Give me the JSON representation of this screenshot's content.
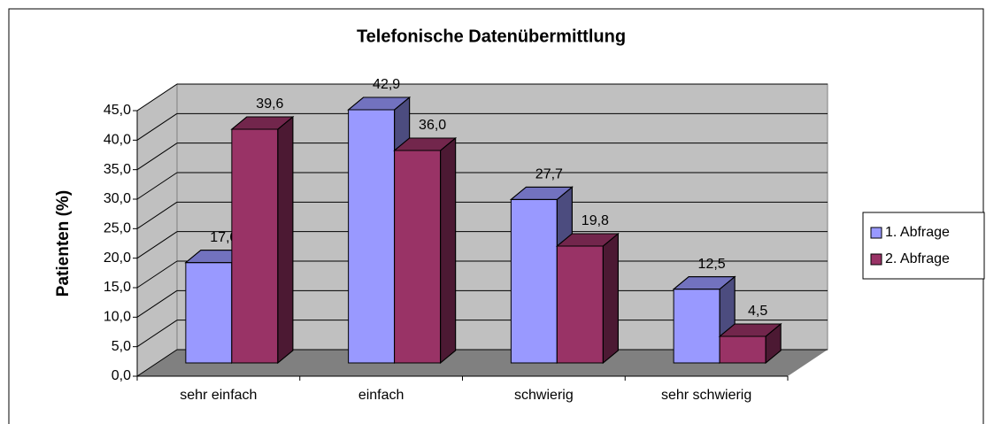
{
  "chart_data": {
    "type": "bar3d",
    "title": "Telefonische Datenübermittlung",
    "ylabel": "Patienten (%)",
    "categories": [
      "sehr einfach",
      "einfach",
      "schwierig",
      "sehr schwierig"
    ],
    "series": [
      {
        "name": "1. Abfrage",
        "color": "#9999ff",
        "values": [
          17.0,
          42.9,
          27.7,
          12.5
        ],
        "value_labels": [
          "17,0",
          "42,9",
          "27,7",
          "12,5"
        ]
      },
      {
        "name": "2. Abfrage",
        "color": "#993366",
        "values": [
          39.6,
          36.0,
          19.8,
          4.5
        ],
        "value_labels": [
          "39,6",
          "36,0",
          "19,8",
          "4,5"
        ]
      }
    ],
    "ylim": [
      0,
      45
    ],
    "yticks": [
      {
        "value": 0,
        "label": "0,0"
      },
      {
        "value": 5,
        "label": "5,0"
      },
      {
        "value": 10,
        "label": "10,0"
      },
      {
        "value": 15,
        "label": "15,0"
      },
      {
        "value": 20,
        "label": "20,0"
      },
      {
        "value": 25,
        "label": "25,0"
      },
      {
        "value": 30,
        "label": "30,0"
      },
      {
        "value": 35,
        "label": "35,0"
      },
      {
        "value": 40,
        "label": "40,0"
      },
      {
        "value": 45,
        "label": "45,0"
      }
    ],
    "grid": true,
    "legend": "right"
  }
}
